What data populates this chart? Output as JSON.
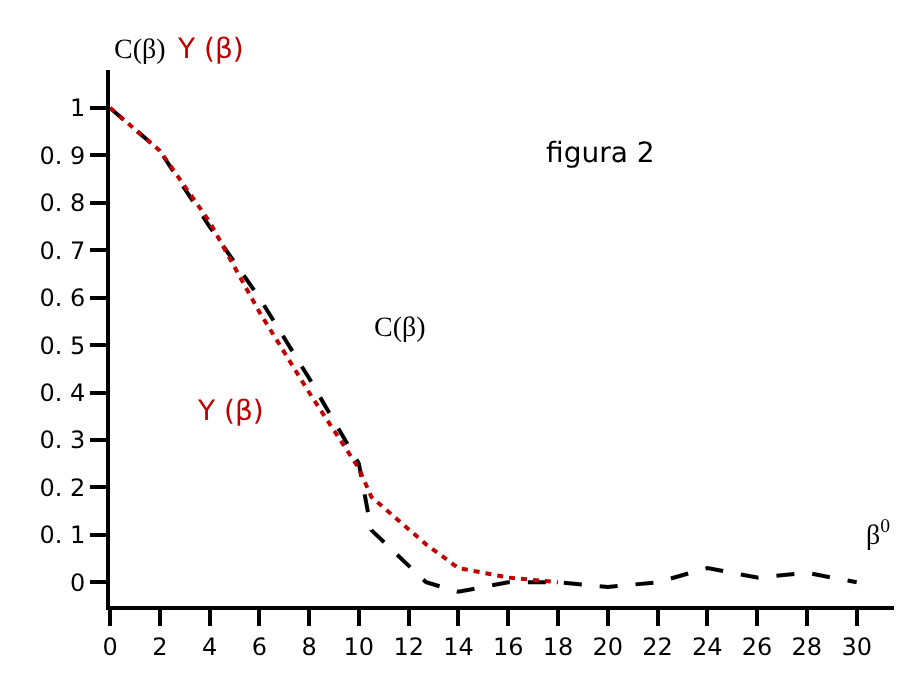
{
  "chart_data": {
    "type": "line",
    "ylabel": "C(β)",
    "xlabel": "β$^{0}$",
    "annotations": [
      "figura 2",
      "Y (β)"
    ],
    "x": [
      0,
      2,
      4,
      6,
      8,
      10,
      10.5,
      12.7,
      14,
      16,
      18,
      20,
      22,
      24,
      26,
      28,
      30
    ],
    "series": [
      {
        "name": "C(β)",
        "color": "#000000",
        "line_style": "dashed",
        "values": [
          1,
          0.91,
          0.75,
          0.6,
          0.43,
          0.25,
          0.11,
          0,
          -0.02,
          0.0,
          0.0,
          -0.01,
          0,
          0.03,
          0.01,
          0.02,
          0
        ]
      },
      {
        "name": "Y (β)",
        "color": "#c00000",
        "line_style": "dotted",
        "values": [
          1,
          0.91,
          0.76,
          0.57,
          0.4,
          0.24,
          0.18,
          0.08,
          0.03,
          0.01,
          0.0,
          null,
          null,
          null,
          null,
          null,
          null
        ]
      }
    ],
    "xlim": [
      0,
      31.5
    ],
    "ylim": [
      -0.05,
      1.08
    ],
    "xticks": [
      0,
      2,
      4,
      6,
      8,
      10,
      12,
      14,
      16,
      18,
      20,
      22,
      24,
      26,
      28,
      30
    ],
    "yticks": [
      {
        "value": 0,
        "label": "0"
      },
      {
        "value": 0.1,
        "label": "0. 1"
      },
      {
        "value": 0.2,
        "label": "0. 2"
      },
      {
        "value": 0.3,
        "label": "0. 3"
      },
      {
        "value": 0.4,
        "label": "0. 4"
      },
      {
        "value": 0.5,
        "label": "0. 5"
      },
      {
        "value": 0.6,
        "label": "0. 6"
      },
      {
        "value": 0.7,
        "label": "0. 7"
      },
      {
        "value": 0.8,
        "label": "0. 8"
      },
      {
        "value": 0.9,
        "label": "0. 9"
      },
      {
        "value": 1,
        "label": "1"
      }
    ],
    "legend": false,
    "marker": "none"
  }
}
